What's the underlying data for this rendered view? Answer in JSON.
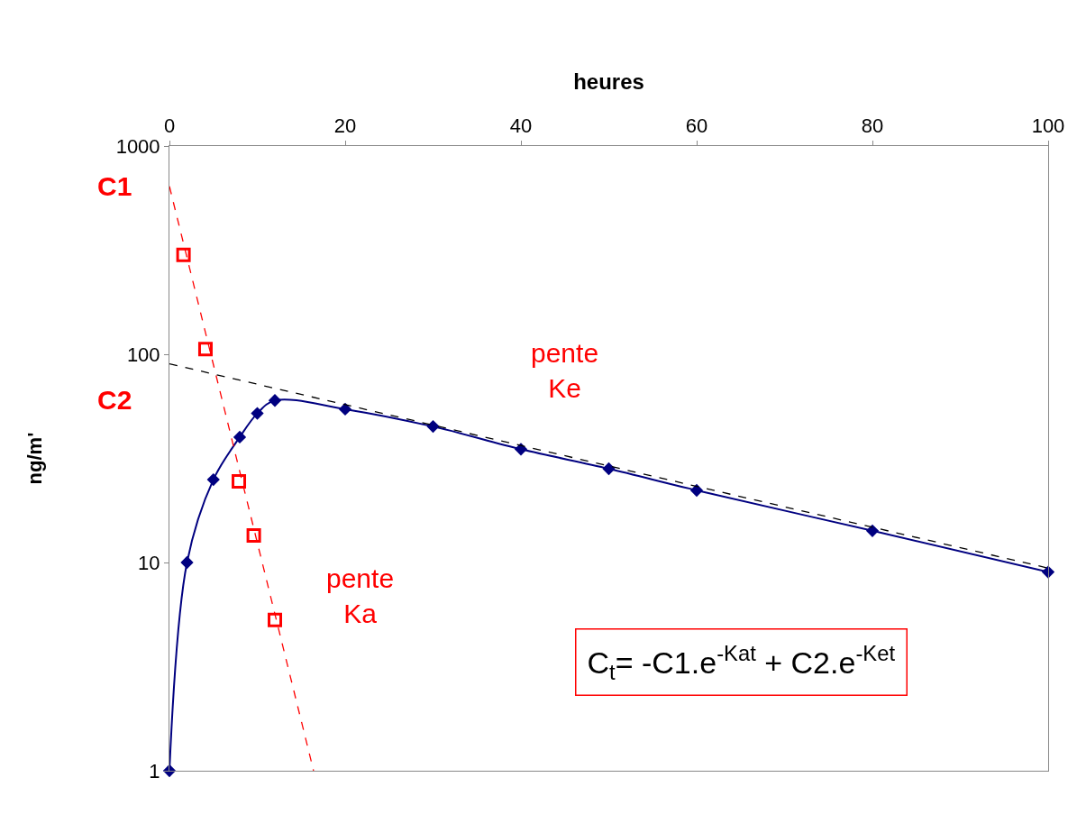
{
  "chart_data": {
    "type": "line",
    "xlabel": "heures",
    "ylabel": "ng/m'",
    "x": [
      0,
      2,
      5,
      8,
      10,
      12,
      20,
      30,
      40,
      50,
      60,
      80,
      100
    ],
    "series": [
      {
        "color": "#000080",
        "marker": "diamond",
        "line_style": "solid",
        "values": [
          1,
          10,
          25,
          40,
          52,
          60,
          54.5,
          45,
          35,
          28.2,
          22.2,
          14.2,
          9
        ]
      },
      {
        "type": "scatter",
        "color": "#ff0000",
        "marker": "square",
        "x": [
          1.6,
          4.1,
          7.9,
          9.6,
          12
        ],
        "values": [
          300,
          106,
          24.5,
          13.5,
          5.3
        ]
      },
      {
        "type": "line",
        "color": "#ff0000",
        "marker": "none",
        "line_style": "dashed",
        "x": [
          0,
          16.4
        ],
        "values": [
          640,
          1
        ]
      },
      {
        "type": "line",
        "color": "#000000",
        "marker": "none",
        "line_style": "dashed",
        "x": [
          0,
          100
        ],
        "values": [
          90,
          9.4
        ]
      }
    ],
    "annotations": [
      {
        "text": "C1",
        "x": 0,
        "y": 640
      },
      {
        "text": "C2",
        "x": 0,
        "y": 90
      },
      "pente\nKe",
      "pente\nKa",
      "C$_{t}$= -C1.e$^{-Kat}$ + C2.e$^{-Ket}$"
    ],
    "xlim": [
      0,
      100
    ],
    "xticks": [
      0,
      20,
      40,
      60,
      80,
      100
    ],
    "ylim": [
      1,
      1000
    ],
    "yticks": [
      1,
      10,
      100,
      1000
    ],
    "log": true
  }
}
